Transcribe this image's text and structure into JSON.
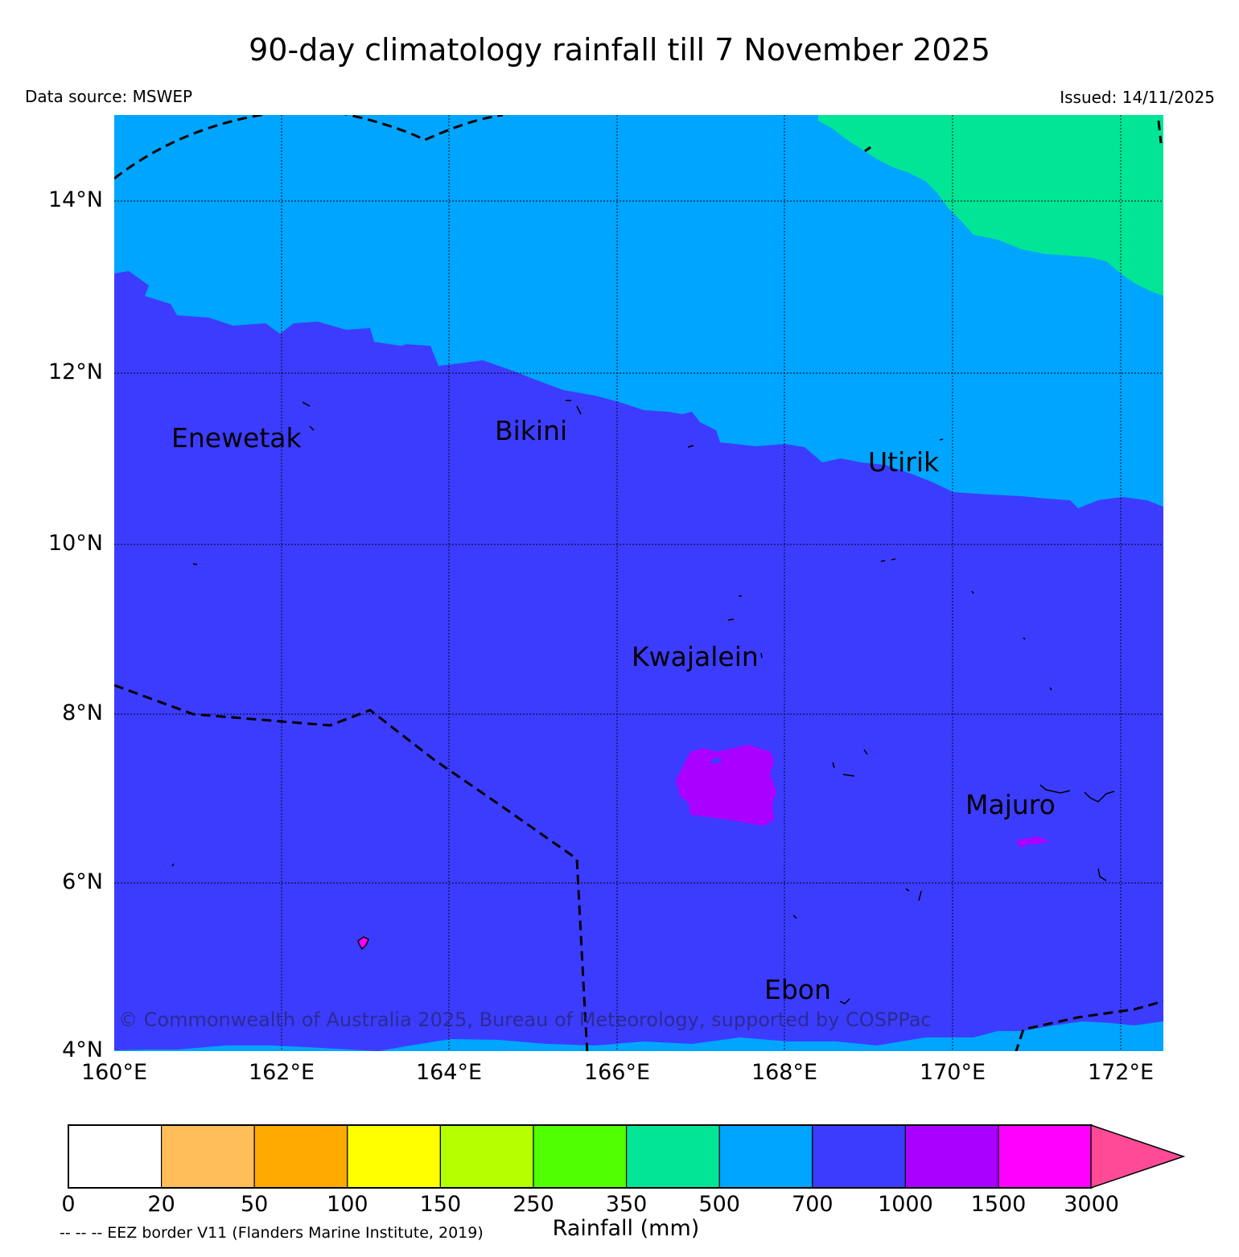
{
  "title": "90-day climatology rainfall till 7 November 2025",
  "data_source": "Data source: MSWEP",
  "issued": "Issued: 14/11/2025",
  "copyright": "© Commonwealth of Australia 2025, Bureau of Meteorology, supported by COSPPac",
  "map": {
    "lat_labels": [
      "14°N",
      "12°N",
      "10°N",
      "8°N",
      "6°N",
      "4°N"
    ],
    "lon_labels": [
      "160°E",
      "162°E",
      "164°E",
      "166°E",
      "168°E",
      "170°E",
      "172°E"
    ],
    "places": [
      "Enewetak",
      "Bikini",
      "Utirik",
      "Kwajalein",
      "Majuro",
      "Ebon"
    ],
    "colors": {
      "c500_700": "#00a5ff",
      "c350_500": "#00e696",
      "c700_1000": "#3c3cff",
      "c1000_1500": "#aa00ff",
      "c1500_3000": "#ff00ff"
    }
  },
  "colorbar": {
    "ticks": [
      "0",
      "20",
      "50",
      "100",
      "150",
      "250",
      "350",
      "500",
      "700",
      "1000",
      "1500",
      "3000"
    ],
    "colors": [
      "#ffffff",
      "#ffbe5a",
      "#ffaa00",
      "#ffff00",
      "#b4ff00",
      "#50ff00",
      "#00e696",
      "#00a5ff",
      "#3c3cff",
      "#aa00ff",
      "#ff00ff",
      "#ff4b96"
    ],
    "label": "Rainfall (mm)"
  },
  "eez_note": "-- -- -- EEZ border V11 (Flanders Marine Institute, 2019)"
}
